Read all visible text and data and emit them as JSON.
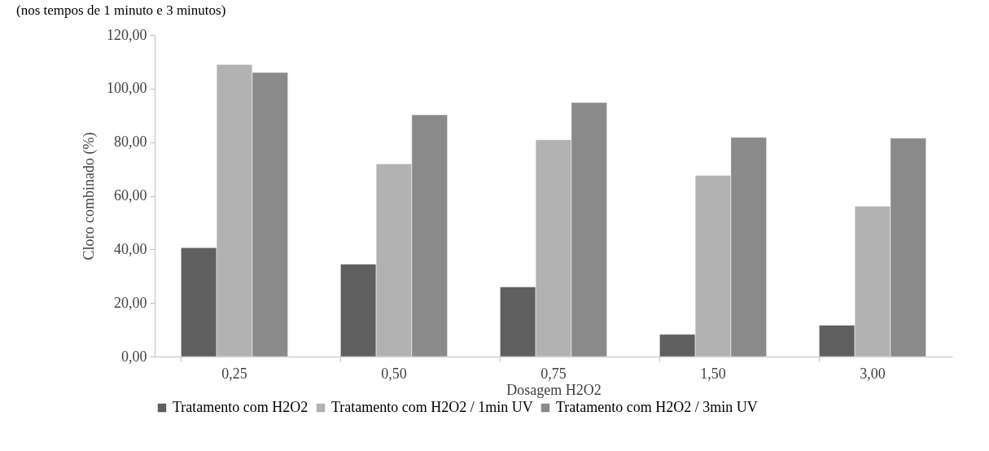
{
  "chart_data": {
    "type": "bar",
    "title": "(nos tempos de 1 minuto e 3 minutos)",
    "xlabel": "Dosagem H2O2",
    "ylabel": "Cloro combinado (%)",
    "categories": [
      "0,25",
      "0,50",
      "0,75",
      "1,50",
      "3,00"
    ],
    "series": [
      {
        "name": "Tratamento com H2O2",
        "color": "#5f5f5f",
        "values": [
          40.6,
          34.5,
          26.0,
          8.3,
          11.7
        ]
      },
      {
        "name": "Tratamento com H2O2 / 1min UV",
        "color": "#b2b2b2",
        "values": [
          109.0,
          71.9,
          80.9,
          67.6,
          56.1
        ]
      },
      {
        "name": "Tratamento com H2O2 / 3min UV",
        "color": "#8a8a8a",
        "values": [
          106.0,
          90.2,
          94.8,
          81.8,
          81.5
        ]
      }
    ],
    "ylim": [
      0,
      120
    ],
    "yticks": [
      {
        "value": 0,
        "label": "0,00"
      },
      {
        "value": 20,
        "label": "20,00"
      },
      {
        "value": 40,
        "label": "40,00"
      },
      {
        "value": 60,
        "label": "60,00"
      },
      {
        "value": 80,
        "label": "80,00"
      },
      {
        "value": 100,
        "label": "100,00"
      },
      {
        "value": 120,
        "label": "120,00"
      }
    ],
    "grid": false,
    "legend": "bottom"
  }
}
